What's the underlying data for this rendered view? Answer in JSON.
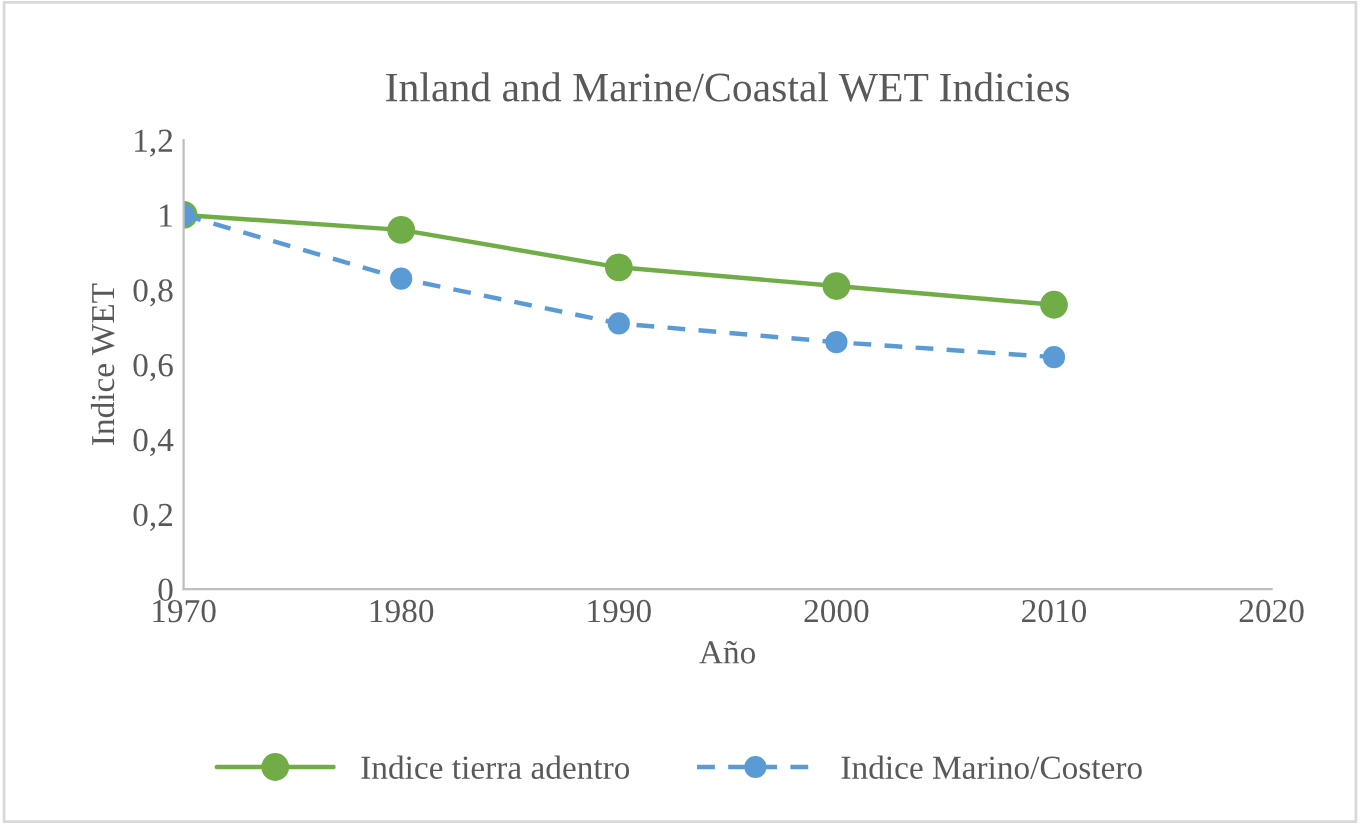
{
  "chart_data": {
    "type": "line",
    "title": "Inland and Marine/Coastal WET Indicies",
    "xlabel": "Año",
    "ylabel": "Indice WET",
    "x": [
      1970,
      1980,
      1990,
      2000,
      2010
    ],
    "series": [
      {
        "name": "Indice tierra adentro",
        "color": "#70ad47",
        "values": [
          1.0,
          0.96,
          0.86,
          0.81,
          0.76
        ],
        "line_style": "solid"
      },
      {
        "name": "Indice Marino/Costero",
        "color": "#5b9bd5",
        "values": [
          1.0,
          0.83,
          0.71,
          0.66,
          0.62
        ],
        "line_style": "dashed"
      }
    ],
    "xlim": [
      1970,
      2020
    ],
    "xticks": [
      1970,
      1980,
      1990,
      2000,
      2010,
      2020
    ],
    "ylim": [
      0,
      1.2
    ],
    "yticks": [
      0,
      {
        "value": 0.2,
        "label": "0,2"
      },
      {
        "value": 0.4,
        "label": "0,4"
      },
      {
        "value": 0.6,
        "label": "0,6"
      },
      {
        "value": 0.8,
        "label": "0,8"
      },
      1,
      {
        "value": 1.2,
        "label": "1,2"
      }
    ],
    "grid": false,
    "legend": "bottom",
    "marker": "circle"
  }
}
